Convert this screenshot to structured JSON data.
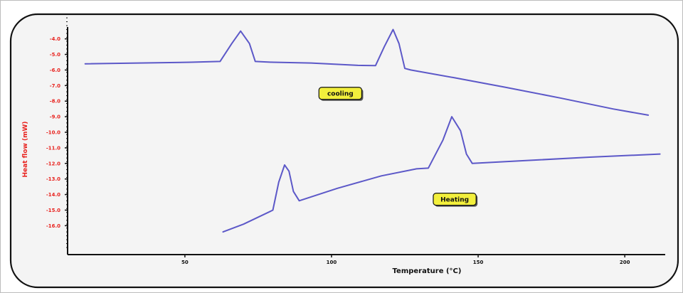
{
  "chart_data": {
    "type": "line",
    "title": "",
    "xlabel": "Temperature (°C)",
    "ylabel": "Heat flow (mW)",
    "xlim": [
      10,
      215
    ],
    "ylim": [
      -17.4,
      -2.6
    ],
    "x_ticks": [
      50,
      100,
      150,
      200
    ],
    "x_tick_labels": [
      "50",
      "100",
      "150",
      "200"
    ],
    "y_ticks": [
      -4,
      -5,
      -6,
      -7,
      -8,
      -9,
      -10,
      -11,
      -12,
      -13,
      -14,
      -15,
      -16
    ],
    "y_tick_labels": [
      "-4.0",
      "-5.0",
      "-6.0",
      "-7.0",
      "-8.0",
      "-9.0",
      "-10.0",
      "-11.0",
      "-12.0",
      "-13.0",
      "-14.0",
      "-15.0",
      "-16.0"
    ],
    "grid": false,
    "legend": "none",
    "series": [
      {
        "color": "#5c58c8",
        "x": [
          16,
          52,
          62,
          66,
          69,
          72,
          74,
          77,
          80,
          93,
          109,
          115,
          118,
          121,
          123,
          125,
          127,
          142,
          159,
          178,
          196,
          208
        ],
        "y": [
          -5.6,
          -5.5,
          -5.45,
          -4.3,
          -3.5,
          -4.3,
          -5.45,
          -5.48,
          -5.5,
          -5.55,
          -5.7,
          -5.72,
          -4.5,
          -3.4,
          -4.3,
          -5.9,
          -6.0,
          -6.5,
          -7.1,
          -7.8,
          -8.5,
          -8.9
        ]
      },
      {
        "color": "#5c58c8",
        "x": [
          63,
          70,
          80,
          82,
          84,
          85.5,
          87,
          89,
          102,
          117,
          129,
          133,
          138,
          141,
          144,
          146,
          148,
          168,
          188,
          212
        ],
        "y": [
          -16.4,
          -15.9,
          -15.0,
          -13.2,
          -12.1,
          -12.5,
          -13.8,
          -14.4,
          -13.6,
          -12.8,
          -12.35,
          -12.3,
          -10.5,
          -9.0,
          -9.9,
          -11.4,
          -12.0,
          -11.8,
          -11.6,
          -11.4
        ]
      }
    ],
    "annotations": [
      {
        "text": "cooling",
        "x": 103,
        "y": -7.5
      },
      {
        "text": "Heating",
        "x": 142,
        "y": -14.3
      }
    ]
  }
}
